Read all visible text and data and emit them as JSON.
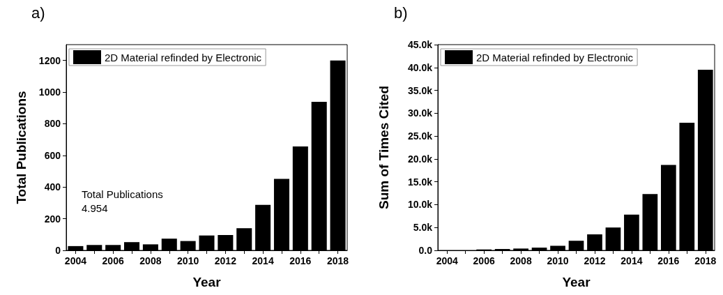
{
  "chart_data": [
    {
      "type": "bar",
      "title": "a)",
      "xlabel": "Year",
      "ylabel": "Total Publications",
      "categories": [
        "2004",
        null,
        "2006",
        null,
        "2008",
        null,
        "2010",
        null,
        "2012",
        null,
        "2014",
        null,
        "2016",
        null,
        "2018"
      ],
      "series": [
        {
          "name": "2D Material refinded by Electronic",
          "color": "#000000",
          "values": [
            27,
            34,
            34,
            52,
            38,
            74,
            59,
            94,
            97,
            140,
            288,
            452,
            657,
            939,
            1200
          ]
        }
      ],
      "ylim": [
        0,
        1300
      ],
      "yticks": [
        0,
        200,
        400,
        600,
        800,
        1000,
        1200
      ],
      "grid": false,
      "legend": "top left",
      "annotations": [
        "Total Publications\n4.954"
      ]
    },
    {
      "type": "bar",
      "title": "b)",
      "xlabel": "Year",
      "ylabel": "Sum of Times Cited",
      "categories": [
        "2004",
        null,
        "2006",
        null,
        "2008",
        null,
        "2010",
        null,
        "2012",
        null,
        "2014",
        null,
        "2016",
        null,
        "2018"
      ],
      "series": [
        {
          "name": "2D Material refinded by Electronic",
          "color": "#000000",
          "values": [
            0,
            0,
            200,
            300,
            400,
            600,
            1000,
            2100,
            3500,
            5000,
            7800,
            12300,
            18700,
            27900,
            39500
          ]
        }
      ],
      "ylim": [
        0,
        45000
      ],
      "yticks": [
        {
          "value": 0,
          "label": "0.0"
        },
        {
          "value": 5000,
          "label": "5.0k"
        },
        {
          "value": 10000,
          "label": "10.0k"
        },
        {
          "value": 15000,
          "label": "15.0k"
        },
        {
          "value": 20000,
          "label": "20.0k"
        },
        {
          "value": 25000,
          "label": "25.0k"
        },
        {
          "value": 30000,
          "label": "30.0k"
        },
        {
          "value": 35000,
          "label": "35.0k"
        },
        {
          "value": 40000,
          "label": "40.0k"
        },
        {
          "value": 45000,
          "label": "45.0k"
        }
      ],
      "grid": false,
      "legend": "top left"
    }
  ]
}
